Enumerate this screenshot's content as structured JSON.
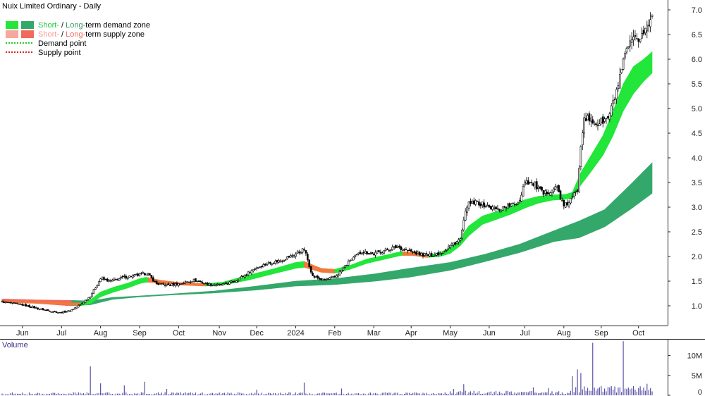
{
  "chart_data": {
    "type": "line",
    "title": "Nuix Limited Ordinary - Daily",
    "colors": {
      "short_demand": "#22e63a",
      "long_demand": "#33a86a",
      "short_supply": "#f6a79e",
      "long_supply": "#f26a5e",
      "transition": "#f07a3a",
      "candle": "#000000",
      "volume": "#5b52a8",
      "axis": "#222222",
      "volume_label": "#3a2a8a"
    },
    "legend": {
      "placement": "top-left",
      "rows": [
        {
          "parts": [
            {
              "text": "Short-",
              "color": "#22c83a"
            },
            {
              "text": " / ",
              "color": "#000000"
            },
            {
              "text": "Long-",
              "color": "#2f9a60"
            },
            {
              "text": "term demand zone",
              "color": "#000000"
            }
          ],
          "swatches": [
            "#22e63a",
            "#33a86a"
          ]
        },
        {
          "parts": [
            {
              "text": "Short-",
              "color": "#f4a199"
            },
            {
              "text": " / ",
              "color": "#000000"
            },
            {
              "text": "Long-",
              "color": "#f06b5e"
            },
            {
              "text": "term supply zone",
              "color": "#000000"
            }
          ],
          "swatches": [
            "#f6a79e",
            "#f26a5e"
          ]
        },
        {
          "parts": [
            {
              "text": "Demand point",
              "color": "#000000"
            }
          ],
          "dotted": "#22cc22"
        },
        {
          "parts": [
            {
              "text": "Supply point",
              "color": "#000000"
            }
          ],
          "dotted": "#dd2222"
        }
      ]
    },
    "x": {
      "month_labels": [
        "Jun",
        "Jul",
        "Aug",
        "Sep",
        "Oct",
        "Nov",
        "Dec",
        "2024",
        "Feb",
        "Mar",
        "Apr",
        "May",
        "Jun",
        "Jul",
        "Aug",
        "Sep",
        "Oct"
      ],
      "month_label_index": [
        12,
        35,
        58,
        81,
        104,
        128,
        150,
        173,
        196,
        219,
        241,
        264,
        287,
        308,
        331,
        353,
        375
      ],
      "n_bars": 384
    },
    "price_axis": {
      "ylim": [
        0.6,
        7.2
      ],
      "ticks": [
        1.0,
        1.5,
        2.0,
        2.5,
        3.0,
        3.5,
        4.0,
        4.5,
        5.0,
        5.5,
        6.0,
        6.5,
        7.0
      ],
      "tick_labels": [
        "1.0",
        "1.5",
        "2.0",
        "2.5",
        "3.0",
        "3.5",
        "4.0",
        "4.5",
        "5.0",
        "5.5",
        "6.0",
        "6.5",
        "7.0"
      ],
      "grid": false,
      "position": "right"
    },
    "close_anchors": [
      [
        0,
        1.08
      ],
      [
        12,
        1.02
      ],
      [
        23,
        0.93
      ],
      [
        34,
        0.86
      ],
      [
        40,
        0.9
      ],
      [
        46,
        1.02
      ],
      [
        52,
        1.2
      ],
      [
        58,
        1.55
      ],
      [
        64,
        1.5
      ],
      [
        72,
        1.58
      ],
      [
        80,
        1.62
      ],
      [
        85,
        1.67
      ],
      [
        91,
        1.45
      ],
      [
        97,
        1.42
      ],
      [
        105,
        1.45
      ],
      [
        113,
        1.52
      ],
      [
        121,
        1.44
      ],
      [
        129,
        1.42
      ],
      [
        137,
        1.5
      ],
      [
        143,
        1.62
      ],
      [
        150,
        1.78
      ],
      [
        156,
        1.85
      ],
      [
        164,
        1.92
      ],
      [
        173,
        2.05
      ],
      [
        178,
        2.15
      ],
      [
        183,
        1.6
      ],
      [
        189,
        1.52
      ],
      [
        196,
        1.58
      ],
      [
        200,
        1.72
      ],
      [
        205,
        1.92
      ],
      [
        212,
        2.1
      ],
      [
        219,
        2.05
      ],
      [
        225,
        2.12
      ],
      [
        233,
        2.2
      ],
      [
        240,
        2.1
      ],
      [
        246,
        2.05
      ],
      [
        252,
        2.02
      ],
      [
        259,
        2.08
      ],
      [
        264,
        2.22
      ],
      [
        270,
        2.35
      ],
      [
        274,
        3.05
      ],
      [
        280,
        3.1
      ],
      [
        287,
        3.0
      ],
      [
        292,
        2.95
      ],
      [
        297,
        3.02
      ],
      [
        302,
        3.05
      ],
      [
        305,
        3.15
      ],
      [
        308,
        3.55
      ],
      [
        314,
        3.45
      ],
      [
        319,
        3.25
      ],
      [
        323,
        3.35
      ],
      [
        327,
        3.4
      ],
      [
        331,
        3.0
      ],
      [
        335,
        3.15
      ],
      [
        339,
        3.35
      ],
      [
        341,
        4.3
      ],
      [
        343,
        4.85
      ],
      [
        346,
        4.75
      ],
      [
        351,
        4.7
      ],
      [
        357,
        4.8
      ],
      [
        360,
        5.1
      ],
      [
        364,
        5.6
      ],
      [
        368,
        6.2
      ],
      [
        372,
        6.35
      ],
      [
        376,
        6.45
      ],
      [
        380,
        6.65
      ],
      [
        383,
        6.88
      ]
    ],
    "short_zone_anchors": [
      [
        0,
        1.1,
        1.07
      ],
      [
        20,
        1.08,
        1.05
      ],
      [
        40,
        1.06,
        1.02
      ],
      [
        46,
        1.06,
        1.0
      ],
      [
        52,
        1.12,
        1.04
      ],
      [
        58,
        1.28,
        1.18
      ],
      [
        66,
        1.38,
        1.28
      ],
      [
        74,
        1.46,
        1.36
      ],
      [
        81,
        1.55,
        1.45
      ],
      [
        85,
        1.58,
        1.48
      ],
      [
        93,
        1.52,
        1.46
      ],
      [
        105,
        1.47,
        1.42
      ],
      [
        120,
        1.45,
        1.4
      ],
      [
        130,
        1.48,
        1.42
      ],
      [
        145,
        1.62,
        1.52
      ],
      [
        160,
        1.75,
        1.65
      ],
      [
        173,
        1.88,
        1.76
      ],
      [
        178,
        1.9,
        1.78
      ],
      [
        188,
        1.76,
        1.68
      ],
      [
        196,
        1.74,
        1.66
      ],
      [
        205,
        1.82,
        1.74
      ],
      [
        215,
        1.95,
        1.86
      ],
      [
        225,
        2.02,
        1.94
      ],
      [
        235,
        2.1,
        2.02
      ],
      [
        242,
        2.08,
        2.02
      ],
      [
        250,
        2.02,
        1.98
      ],
      [
        258,
        2.08,
        2.0
      ],
      [
        264,
        2.18,
        2.06
      ],
      [
        270,
        2.38,
        2.22
      ],
      [
        275,
        2.62,
        2.42
      ],
      [
        283,
        2.82,
        2.65
      ],
      [
        292,
        2.92,
        2.76
      ],
      [
        300,
        3.02,
        2.86
      ],
      [
        308,
        3.15,
        2.98
      ],
      [
        316,
        3.22,
        3.08
      ],
      [
        324,
        3.25,
        3.14
      ],
      [
        332,
        3.26,
        3.16
      ],
      [
        336,
        3.3,
        3.18
      ],
      [
        341,
        3.7,
        3.45
      ],
      [
        347,
        4.05,
        3.72
      ],
      [
        354,
        4.45,
        4.05
      ],
      [
        360,
        4.95,
        4.45
      ],
      [
        366,
        5.5,
        4.95
      ],
      [
        372,
        5.85,
        5.3
      ],
      [
        378,
        6.0,
        5.55
      ],
      [
        383,
        6.15,
        5.72
      ]
    ],
    "long_zone_anchors": [
      [
        0,
        1.14,
        1.1
      ],
      [
        20,
        1.12,
        1.05
      ],
      [
        40,
        1.11,
        1.0
      ],
      [
        52,
        1.1,
        1.02
      ],
      [
        65,
        1.17,
        1.13
      ],
      [
        81,
        1.2,
        1.18
      ],
      [
        100,
        1.24,
        1.22
      ],
      [
        125,
        1.3,
        1.26
      ],
      [
        150,
        1.4,
        1.32
      ],
      [
        173,
        1.5,
        1.4
      ],
      [
        196,
        1.55,
        1.43
      ],
      [
        220,
        1.65,
        1.5
      ],
      [
        240,
        1.76,
        1.58
      ],
      [
        264,
        1.88,
        1.72
      ],
      [
        285,
        2.05,
        1.9
      ],
      [
        305,
        2.25,
        2.08
      ],
      [
        325,
        2.52,
        2.3
      ],
      [
        340,
        2.72,
        2.38
      ],
      [
        355,
        2.95,
        2.6
      ],
      [
        370,
        3.45,
        2.95
      ],
      [
        383,
        3.9,
        3.28
      ]
    ],
    "volume_axis": {
      "label": "Volume",
      "ticks": [
        0,
        5000000,
        10000000
      ],
      "tick_labels": [
        "0",
        "5M",
        "10M"
      ],
      "ylim": [
        0,
        14000000
      ]
    },
    "volume_spikes": [
      [
        52,
        7300000
      ],
      [
        58,
        3000000
      ],
      [
        72,
        2500000
      ],
      [
        84,
        3400000
      ],
      [
        97,
        1600000
      ],
      [
        150,
        1400000
      ],
      [
        178,
        3200000
      ],
      [
        200,
        1700000
      ],
      [
        266,
        1600000
      ],
      [
        272,
        2800000
      ],
      [
        313,
        2000000
      ],
      [
        322,
        1800000
      ],
      [
        336,
        4800000
      ],
      [
        339,
        6500000
      ],
      [
        341,
        5600000
      ],
      [
        348,
        13200000
      ],
      [
        366,
        13600000
      ],
      [
        380,
        2900000
      ]
    ]
  }
}
